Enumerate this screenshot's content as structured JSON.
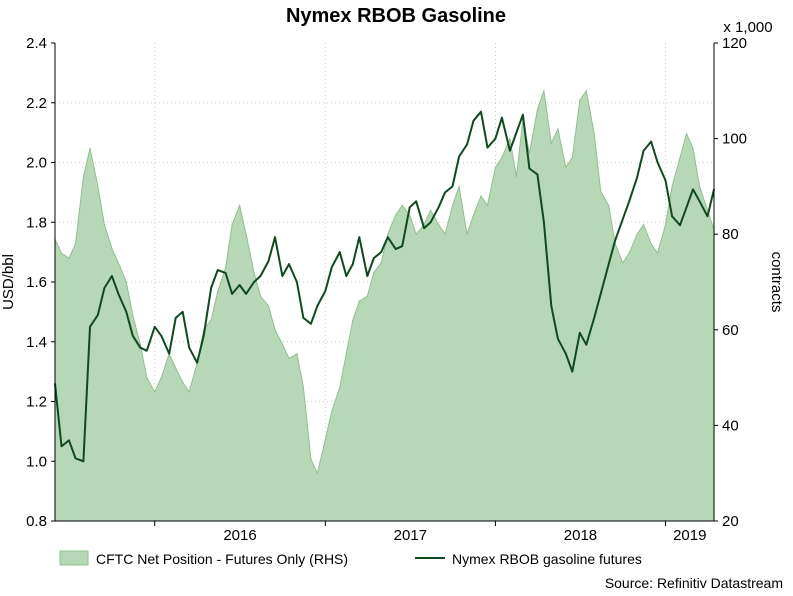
{
  "chart_data": {
    "type": "line",
    "title": "Nymex RBOB Gasoline",
    "ylabel_left": "USD/bbl",
    "ylabel_right": "contracts",
    "right_multiplier": "x 1,000",
    "ylim_left": [
      0.8,
      2.4
    ],
    "ylim_right": [
      20,
      120
    ],
    "left_ticks": [
      "0.8",
      "1.0",
      "1.2",
      "1.4",
      "1.6",
      "1.8",
      "2.0",
      "2.2",
      "2.4"
    ],
    "right_ticks": [
      "20",
      "40",
      "60",
      "80",
      "100",
      "120"
    ],
    "x_tick_labels": [
      "2016",
      "2017",
      "2018",
      "2019"
    ],
    "x_range": [
      "2015-06-01",
      "2019-04-15"
    ],
    "grid": true,
    "legend_position": "bottom",
    "source": "Source: Refinitiv Datastream",
    "colors": {
      "area_fill": "#b7d8b7",
      "area_stroke": "#8fbf8f",
      "line": "#0f4a1f",
      "grid": "#cccccc"
    },
    "series": [
      {
        "name": "CFTC Net Position - Futures Only (RHS)",
        "axis": "right",
        "style": "area",
        "x": [
          "2015-06-01",
          "2015-06-15",
          "2015-07-01",
          "2015-07-15",
          "2015-08-01",
          "2015-08-15",
          "2015-09-01",
          "2015-09-15",
          "2015-10-01",
          "2015-10-15",
          "2015-11-01",
          "2015-11-15",
          "2015-12-01",
          "2015-12-15",
          "2016-01-01",
          "2016-01-15",
          "2016-02-01",
          "2016-02-15",
          "2016-03-01",
          "2016-03-15",
          "2016-04-01",
          "2016-04-15",
          "2016-05-01",
          "2016-05-15",
          "2016-06-01",
          "2016-06-15",
          "2016-07-01",
          "2016-07-15",
          "2016-08-01",
          "2016-08-15",
          "2016-09-01",
          "2016-09-15",
          "2016-10-01",
          "2016-10-15",
          "2016-11-01",
          "2016-11-15",
          "2016-12-01",
          "2016-12-15",
          "2017-01-01",
          "2017-01-15",
          "2017-02-01",
          "2017-02-15",
          "2017-03-01",
          "2017-03-15",
          "2017-04-01",
          "2017-04-15",
          "2017-05-01",
          "2017-05-15",
          "2017-06-01",
          "2017-06-15",
          "2017-07-01",
          "2017-07-15",
          "2017-08-01",
          "2017-08-15",
          "2017-09-01",
          "2017-09-15",
          "2017-10-01",
          "2017-10-15",
          "2017-11-01",
          "2017-11-15",
          "2017-12-01",
          "2017-12-15",
          "2018-01-01",
          "2018-01-15",
          "2018-02-01",
          "2018-02-15",
          "2018-03-01",
          "2018-03-15",
          "2018-04-01",
          "2018-04-15",
          "2018-05-01",
          "2018-05-15",
          "2018-06-01",
          "2018-06-15",
          "2018-07-01",
          "2018-07-15",
          "2018-08-01",
          "2018-08-15",
          "2018-09-01",
          "2018-09-15",
          "2018-10-01",
          "2018-10-15",
          "2018-11-01",
          "2018-11-15",
          "2018-12-01",
          "2018-12-15",
          "2019-01-01",
          "2019-01-15",
          "2019-02-01",
          "2019-02-15",
          "2019-03-01",
          "2019-03-15",
          "2019-04-01",
          "2019-04-15"
        ],
        "values": [
          79,
          76,
          75,
          78,
          92,
          98,
          90,
          82,
          77,
          74,
          70,
          63,
          57,
          50,
          47,
          50,
          55,
          52,
          49,
          47,
          53,
          60,
          62,
          68,
          73,
          82,
          86,
          80,
          72,
          67,
          65,
          60,
          57,
          54,
          55,
          48,
          33,
          30,
          37,
          43,
          48,
          55,
          62,
          66,
          67,
          72,
          74,
          80,
          84,
          86,
          84,
          80,
          82,
          85,
          82,
          80,
          86,
          90,
          80,
          84,
          88,
          86,
          94,
          96,
          100,
          92,
          104,
          97,
          106,
          110,
          99,
          102,
          94,
          96,
          108,
          110,
          101,
          89,
          86,
          78,
          74,
          76,
          80,
          82,
          78,
          76,
          82,
          90,
          96,
          101,
          98,
          90,
          85,
          81
        ]
      },
      {
        "name": "Nymex RBOB gasoline futures",
        "axis": "left",
        "style": "line",
        "x": [
          "2015-06-01",
          "2015-06-15",
          "2015-07-01",
          "2015-07-15",
          "2015-08-01",
          "2015-08-15",
          "2015-09-01",
          "2015-09-15",
          "2015-10-01",
          "2015-10-15",
          "2015-11-01",
          "2015-11-15",
          "2015-12-01",
          "2015-12-15",
          "2016-01-01",
          "2016-01-15",
          "2016-02-01",
          "2016-02-15",
          "2016-03-01",
          "2016-03-15",
          "2016-04-01",
          "2016-04-15",
          "2016-05-01",
          "2016-05-15",
          "2016-06-01",
          "2016-06-15",
          "2016-07-01",
          "2016-07-15",
          "2016-08-01",
          "2016-08-15",
          "2016-09-01",
          "2016-09-15",
          "2016-10-01",
          "2016-10-15",
          "2016-11-01",
          "2016-11-15",
          "2016-12-01",
          "2016-12-15",
          "2017-01-01",
          "2017-01-15",
          "2017-02-01",
          "2017-02-15",
          "2017-03-01",
          "2017-03-15",
          "2017-04-01",
          "2017-04-15",
          "2017-05-01",
          "2017-05-15",
          "2017-06-01",
          "2017-06-15",
          "2017-07-01",
          "2017-07-15",
          "2017-08-01",
          "2017-08-15",
          "2017-09-01",
          "2017-09-15",
          "2017-10-01",
          "2017-10-15",
          "2017-11-01",
          "2017-11-15",
          "2017-12-01",
          "2017-12-15",
          "2018-01-01",
          "2018-01-15",
          "2018-02-01",
          "2018-02-15",
          "2018-03-01",
          "2018-03-15",
          "2018-04-01",
          "2018-04-15",
          "2018-05-01",
          "2018-05-15",
          "2018-06-01",
          "2018-06-15",
          "2018-07-01",
          "2018-07-15",
          "2018-08-01",
          "2018-08-15",
          "2018-09-01",
          "2018-09-15",
          "2018-10-01",
          "2018-10-15",
          "2018-11-01",
          "2018-11-15",
          "2018-12-01",
          "2018-12-15",
          "2019-01-01",
          "2019-01-15",
          "2019-02-01",
          "2019-02-15",
          "2019-03-01",
          "2019-03-15",
          "2019-04-01",
          "2019-04-15"
        ],
        "values": [
          1.26,
          1.05,
          1.07,
          1.01,
          1.0,
          1.45,
          1.49,
          1.58,
          1.62,
          1.56,
          1.5,
          1.42,
          1.38,
          1.37,
          1.45,
          1.42,
          1.36,
          1.48,
          1.5,
          1.38,
          1.33,
          1.42,
          1.58,
          1.64,
          1.63,
          1.56,
          1.59,
          1.56,
          1.6,
          1.62,
          1.67,
          1.75,
          1.62,
          1.66,
          1.6,
          1.48,
          1.46,
          1.52,
          1.57,
          1.65,
          1.7,
          1.62,
          1.66,
          1.75,
          1.62,
          1.68,
          1.7,
          1.75,
          1.71,
          1.72,
          1.85,
          1.87,
          1.78,
          1.8,
          1.85,
          1.9,
          1.92,
          2.02,
          2.06,
          2.14,
          2.17,
          2.05,
          2.08,
          2.15,
          2.04,
          2.1,
          2.16,
          1.98,
          1.96,
          1.8,
          1.52,
          1.41,
          1.36,
          1.3,
          1.43,
          1.39,
          1.48,
          1.56,
          1.66,
          1.74,
          1.81,
          1.87,
          1.95,
          2.04,
          2.07,
          2.0,
          1.94,
          1.82,
          1.79,
          1.85,
          1.91,
          1.87,
          1.82,
          1.91
        ]
      }
    ]
  }
}
